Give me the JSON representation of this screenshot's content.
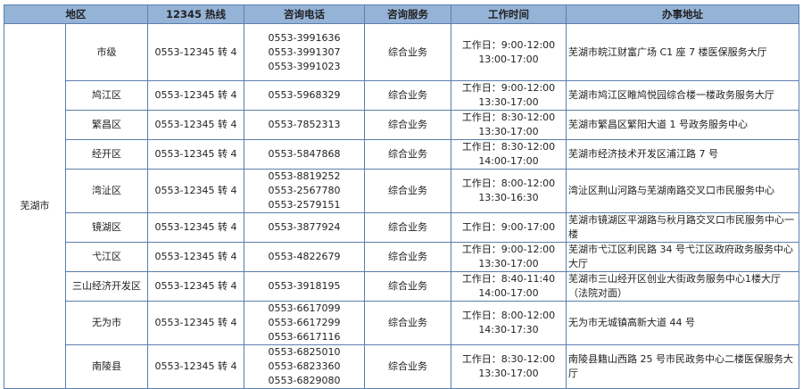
{
  "header": {
    "region": "地区",
    "hotline": "12345 热线",
    "phone": "咨询电话",
    "service": "咨询服务",
    "hours": "工作时间",
    "address": "办事地址"
  },
  "city": "芜湖市",
  "rows": [
    {
      "district": "市级",
      "hotline": "0553-12345 转 4",
      "phones": [
        "0553-3991636",
        "0553-3991307",
        "0553-3991023"
      ],
      "service": "综合业务",
      "hours": [
        "工作日：9:00-12:00",
        "13:00-17:00"
      ],
      "address": "芜湖市皖江财富广场 C1 座 7 楼医保服务大厅"
    },
    {
      "district": "鸠江区",
      "hotline": "0553-12345 转 4",
      "phones": [
        "0553-5968329"
      ],
      "service": "综合业务",
      "hours": [
        "工作日：9:00-12:00",
        "13:30-17:00"
      ],
      "address": "芜湖市鸠江区睢鸠悦园综合楼一楼政务服务大厅"
    },
    {
      "district": "繁昌区",
      "hotline": "0553-12345 转 4",
      "phones": [
        "0553-7852313"
      ],
      "service": "综合业务",
      "hours": [
        "工作日：8:30-12:00",
        "13:30-17:00"
      ],
      "address": "芜湖市繁昌区繁阳大道 1 号政务服务中心"
    },
    {
      "district": "经开区",
      "hotline": "0553-12345 转 4",
      "phones": [
        "0553-5847868"
      ],
      "service": "综合业务",
      "hours": [
        "工作日：8:30-12:00",
        "14:00-17:00"
      ],
      "address": "芜湖市经济技术开发区浦江路 7 号"
    },
    {
      "district": "湾沚区",
      "hotline": "0553-12345 转 4",
      "phones": [
        "0553-8819252",
        "0553-2567780",
        "0553-2579151"
      ],
      "service": "综合业务",
      "hours": [
        "工作日：8:00-12:00",
        "13:30-16:30"
      ],
      "address": "湾沚区荆山河路与芜湖南路交叉口市民服务中心"
    },
    {
      "district": "镜湖区",
      "hotline": "0553-12345 转 4",
      "phones": [
        "0553-3877924"
      ],
      "service": "综合业务",
      "hours": [
        "工作日：9:00-17:00"
      ],
      "address": "芜湖市镜湖区平湖路与秋月路交叉口市民服务中心一楼"
    },
    {
      "district": "弋江区",
      "hotline": "0553-12345 转 4",
      "phones": [
        "0553-4822679"
      ],
      "service": "综合业务",
      "hours": [
        "工作日：9:00-12:00",
        "13:30-17:00"
      ],
      "address": "芜湖市弋江区利民路 34 号弋江区政府政务服务中心大厅"
    },
    {
      "district": "三山经济开发区",
      "hotline": "0553-12345 转 4",
      "phones": [
        "0553-3918195"
      ],
      "service": "综合业务",
      "hours": [
        "工作日：8:40-11:40",
        "14:00-17:00"
      ],
      "address": "芜湖市三山经开区创业大街政务服务中心1楼大厅（法院对面）"
    },
    {
      "district": "无为市",
      "hotline": "0553-12345 转 4",
      "phones": [
        "0553-6617099",
        "0553-6617299",
        "0553-6617116"
      ],
      "service": "综合业务",
      "hours": [
        "工作日：8:00-12:00",
        "14:30-17:30"
      ],
      "address": "无为市无城镇高新大道 44 号"
    },
    {
      "district": "南陵县",
      "hotline": "0553-12345 转 4",
      "phones": [
        "0553-6825010",
        "0553-6823360",
        "0553-6829080"
      ],
      "service": "综合业务",
      "hours": [
        "工作日：8:30-12:00",
        "13:30-17:00"
      ],
      "address": "南陵县籍山西路 25 号市民政务中心二楼医保服务大厅"
    }
  ]
}
